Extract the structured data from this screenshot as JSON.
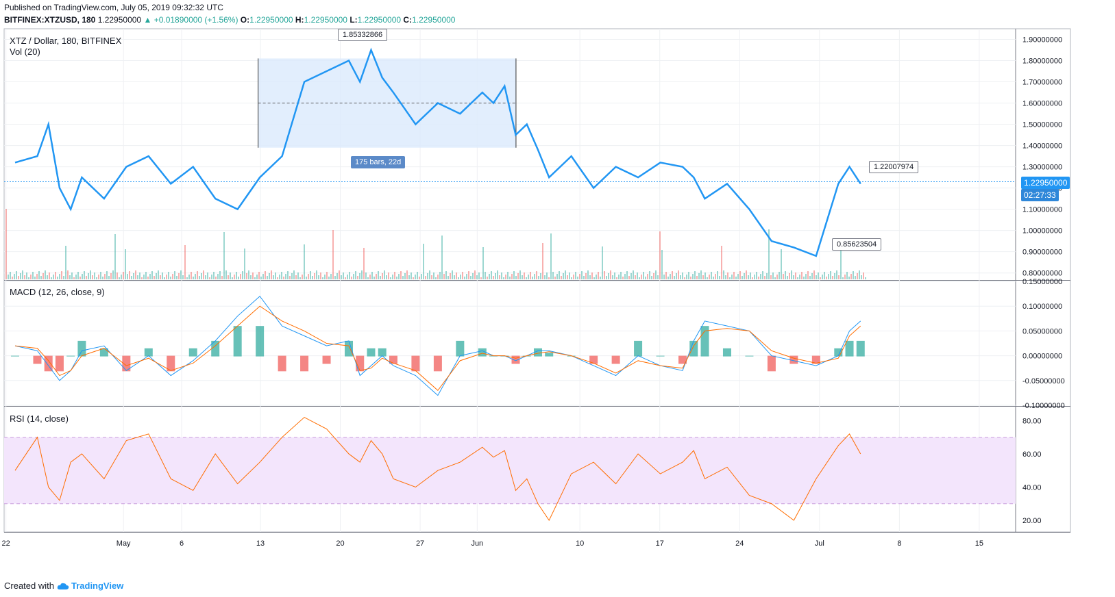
{
  "header": {
    "published": "Published on TradingView.com, July 05, 2019 09:32:32 UTC",
    "symbol": "BITFINEX:XTZUSD, 180",
    "last": "1.22950000",
    "arrow": "▲",
    "change": "+0.01890000 (+1.56%)",
    "o_label": "O:",
    "o_val": "1.22950000",
    "h_label": "H:",
    "h_val": "1.22950000",
    "l_label": "L:",
    "l_val": "1.22950000",
    "c_label": "C:",
    "c_val": "1.22950000"
  },
  "panes": {
    "main_title": "XTZ / Dollar, 180, BITFINEX",
    "vol_title": "Vol (20)",
    "macd_title": "MACD (12, 26, close, 9)",
    "rsi_title": "RSI (14, close)"
  },
  "annotations": {
    "high_callout": "1.85332866",
    "low_callout": "0.85623504",
    "right_callout": "1.22007974",
    "range_label": "175 bars, 22d",
    "price_tag": "1.22950000",
    "countdown": "02:27:33"
  },
  "footer": {
    "created_with": "Created with",
    "brand": "TradingView"
  },
  "colors": {
    "price": "#2196f3",
    "macd": "#2196f3",
    "signal": "#ff6d00",
    "rsi": "#ff6d00",
    "vol_up": "#26a69a",
    "vol_down": "#ef5350",
    "rsi_band": "#f3e5fc",
    "range_box": "#dbeafc"
  },
  "chart_data": {
    "type": "line",
    "x_ticks": [
      "22",
      "May",
      "6",
      "13",
      "20",
      "27",
      "Jun",
      "10",
      "17",
      "24",
      "Jul",
      "8",
      "15"
    ],
    "price_axis": [
      "1.90000000",
      "1.80000000",
      "1.70000000",
      "1.60000000",
      "1.50000000",
      "1.40000000",
      "1.30000000",
      "1.20000000",
      "1.10000000",
      "1.00000000",
      "0.90000000",
      "0.80000000"
    ],
    "price_range": [
      0.77,
      1.95
    ],
    "macd_axis": [
      "0.15000000",
      "0.10000000",
      "0.05000000",
      "0.00000000",
      "-0.05000000",
      "-0.10000000"
    ],
    "macd_range": [
      -0.1,
      0.15
    ],
    "rsi_axis": [
      "80.00",
      "60.00",
      "40.00",
      "20.00"
    ],
    "rsi_range": [
      13,
      88
    ],
    "rsi_bands": [
      30,
      70
    ],
    "x_days": [
      0,
      2,
      3,
      4,
      5,
      6,
      8,
      10,
      12,
      14,
      16,
      18,
      20,
      22,
      24,
      26,
      28,
      30,
      31,
      32,
      33,
      34,
      36,
      38,
      40,
      42,
      43,
      44,
      45,
      46,
      47,
      48,
      50,
      52,
      54,
      56,
      58,
      60,
      61,
      62,
      64,
      66,
      68,
      70,
      72,
      74,
      75,
      76
    ],
    "price": [
      1.32,
      1.35,
      1.5,
      1.2,
      1.1,
      1.25,
      1.15,
      1.3,
      1.35,
      1.22,
      1.3,
      1.15,
      1.1,
      1.25,
      1.35,
      1.7,
      1.75,
      1.8,
      1.7,
      1.85,
      1.72,
      1.65,
      1.5,
      1.6,
      1.55,
      1.65,
      1.6,
      1.68,
      1.45,
      1.5,
      1.38,
      1.25,
      1.35,
      1.2,
      1.3,
      1.25,
      1.32,
      1.3,
      1.25,
      1.15,
      1.22,
      1.1,
      0.95,
      0.92,
      0.88,
      1.22,
      1.3,
      1.22
    ],
    "macd": [
      0.02,
      0.01,
      -0.02,
      -0.05,
      -0.03,
      0.01,
      0.02,
      -0.03,
      0.0,
      -0.04,
      -0.01,
      0.03,
      0.08,
      0.12,
      0.06,
      0.04,
      0.02,
      0.03,
      -0.04,
      -0.02,
      0.0,
      -0.02,
      -0.04,
      -0.08,
      0.0,
      0.01,
      0.0,
      0.0,
      -0.01,
      0.0,
      0.01,
      0.01,
      0.0,
      -0.02,
      -0.04,
      0.0,
      -0.02,
      -0.03,
      0.03,
      0.07,
      0.06,
      0.05,
      0.0,
      -0.01,
      -0.02,
      0.0,
      0.05,
      0.07
    ],
    "signal": [
      0.02,
      0.015,
      -0.01,
      -0.04,
      -0.03,
      0.0,
      0.015,
      -0.02,
      -0.005,
      -0.03,
      -0.015,
      0.02,
      0.06,
      0.1,
      0.07,
      0.05,
      0.025,
      0.02,
      -0.03,
      -0.025,
      -0.005,
      -0.015,
      -0.03,
      -0.07,
      -0.01,
      0.005,
      0.0,
      0.0,
      -0.005,
      0.0,
      0.005,
      0.008,
      0.0,
      -0.015,
      -0.035,
      -0.01,
      -0.02,
      -0.025,
      0.02,
      0.05,
      0.055,
      0.05,
      0.01,
      -0.005,
      -0.015,
      -0.005,
      0.04,
      0.06
    ],
    "rsi": [
      50,
      70,
      40,
      32,
      55,
      60,
      45,
      68,
      72,
      45,
      38,
      60,
      42,
      55,
      70,
      82,
      75,
      60,
      55,
      68,
      60,
      45,
      40,
      50,
      55,
      64,
      58,
      62,
      38,
      45,
      30,
      20,
      48,
      55,
      42,
      60,
      48,
      55,
      62,
      45,
      52,
      35,
      30,
      20,
      45,
      65,
      72,
      60
    ]
  }
}
